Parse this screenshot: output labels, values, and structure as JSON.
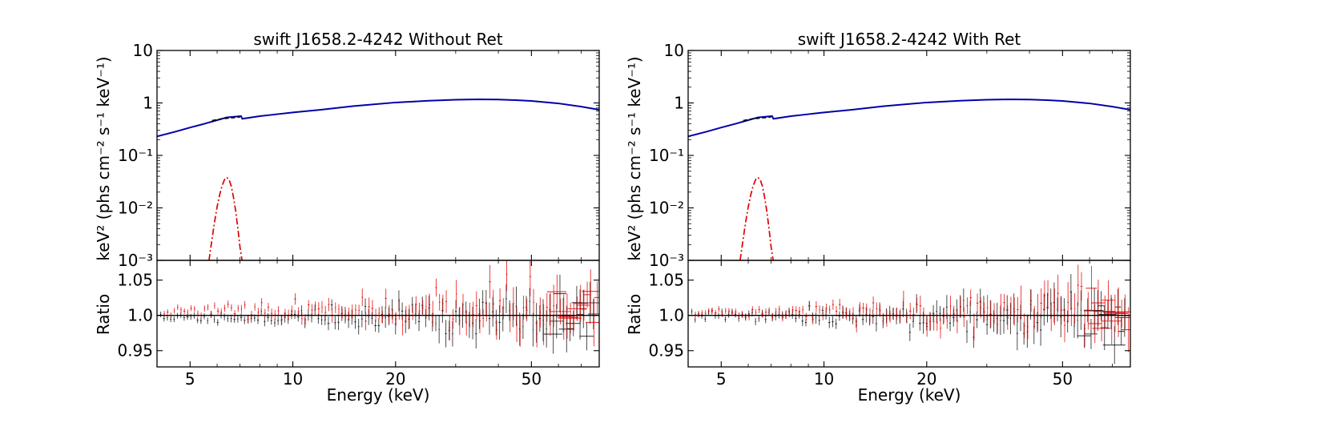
{
  "chart_data": [
    {
      "type": "line",
      "title": "swift J1658.2-4242 Without Ret",
      "xlabel": "Energy (keV)",
      "xscale": "log",
      "xlim": [
        4.0,
        79.0
      ],
      "x_ticks": [
        5,
        10,
        20,
        50
      ],
      "top_panel": {
        "ylabel": "keV² (phs cm⁻² s⁻¹ keV⁻¹)",
        "yscale": "log",
        "ylim": [
          0.001,
          10
        ],
        "y_ticks": [
          {
            "value": 10,
            "label": "10"
          },
          {
            "value": 1,
            "label": "1"
          },
          {
            "value": 0.1,
            "label": "10⁻¹"
          },
          {
            "value": 0.01,
            "label": "10⁻²"
          },
          {
            "value": 0.001,
            "label": "10⁻³"
          }
        ],
        "series": [
          {
            "style": "solid",
            "color": "#0000aa",
            "x": [
              4,
              4.5,
              5,
              5.5,
              6,
              6.4,
              7.05,
              7.11,
              8,
              9,
              10,
              12,
              15,
              20,
              25,
              30,
              35,
              40,
              45,
              50,
              60,
              70,
              79
            ],
            "y": [
              0.23,
              0.28,
              0.34,
              0.4,
              0.47,
              0.53,
              0.56,
              0.5,
              0.56,
              0.61,
              0.66,
              0.74,
              0.87,
              1.02,
              1.1,
              1.15,
              1.17,
              1.16,
              1.13,
              1.09,
              0.98,
              0.85,
              0.74
            ]
          },
          {
            "style": "dashed",
            "color": "#000000",
            "x": [
              5.8,
              6.0,
              6.2,
              6.4,
              6.6,
              6.8,
              7.0
            ],
            "y": [
              0.46,
              0.48,
              0.5,
              0.51,
              0.52,
              0.53,
              0.54
            ]
          },
          {
            "style": "dash-dot",
            "color": "#e00000",
            "x": [
              5.68,
              5.8,
              5.9,
              6.0,
              6.1,
              6.2,
              6.3,
              6.35,
              6.4,
              6.5,
              6.6,
              6.7,
              6.8,
              6.9,
              7.0,
              7.1
            ],
            "y": [
              0.001,
              0.0026,
              0.0055,
              0.0105,
              0.0175,
              0.026,
              0.034,
              0.037,
              0.038,
              0.035,
              0.026,
              0.016,
              0.0087,
              0.0041,
              0.0018,
              0.001
            ]
          }
        ]
      },
      "ratio_panel": {
        "ylabel": "Ratio",
        "ylim": [
          0.927,
          1.078
        ],
        "y_ticks": [
          {
            "value": 1.05,
            "label": "1.05"
          },
          {
            "value": 1.0,
            "label": "1.0"
          },
          {
            "value": 0.95,
            "label": "0.95"
          }
        ],
        "reference_line": 1.0,
        "series": [
          {
            "color": "#000000",
            "seed": 11,
            "x_start": 4.1,
            "x_end": 76,
            "points": 130,
            "bias": -0.003
          },
          {
            "color": "#e00000",
            "seed": 23,
            "x_start": 4.2,
            "x_end": 78,
            "points": 130,
            "bias": 0.006
          }
        ]
      }
    },
    {
      "type": "line",
      "title": "swift J1658.2-4242 With Ret",
      "xlabel": "Energy (keV)",
      "xscale": "log",
      "xlim": [
        4.0,
        79.0
      ],
      "x_ticks": [
        5,
        10,
        20,
        50
      ],
      "top_panel": {
        "ylabel": "keV² (phs cm⁻² s⁻¹ keV⁻¹)",
        "yscale": "log",
        "ylim": [
          0.001,
          10
        ],
        "y_ticks": [
          {
            "value": 10,
            "label": "10"
          },
          {
            "value": 1,
            "label": "1"
          },
          {
            "value": 0.1,
            "label": "10⁻¹"
          },
          {
            "value": 0.01,
            "label": "10⁻²"
          },
          {
            "value": 0.001,
            "label": "10⁻³"
          }
        ],
        "series": [
          {
            "style": "solid",
            "color": "#0000aa",
            "x": [
              4,
              4.5,
              5,
              5.5,
              6,
              6.4,
              7.05,
              7.11,
              8,
              9,
              10,
              12,
              15,
              20,
              25,
              30,
              35,
              40,
              45,
              50,
              60,
              70,
              79
            ],
            "y": [
              0.23,
              0.28,
              0.34,
              0.4,
              0.47,
              0.53,
              0.56,
              0.5,
              0.56,
              0.61,
              0.66,
              0.74,
              0.87,
              1.02,
              1.1,
              1.15,
              1.17,
              1.16,
              1.13,
              1.09,
              0.98,
              0.85,
              0.74
            ]
          },
          {
            "style": "dashed",
            "color": "#000000",
            "x": [
              5.8,
              6.0,
              6.2,
              6.4,
              6.6,
              6.8,
              7.0
            ],
            "y": [
              0.46,
              0.48,
              0.5,
              0.51,
              0.52,
              0.53,
              0.54
            ]
          },
          {
            "style": "dash-dot",
            "color": "#e00000",
            "x": [
              5.68,
              5.8,
              5.9,
              6.0,
              6.1,
              6.2,
              6.3,
              6.35,
              6.4,
              6.5,
              6.6,
              6.7,
              6.8,
              6.9,
              7.0,
              7.1
            ],
            "y": [
              0.001,
              0.0026,
              0.0055,
              0.0105,
              0.0175,
              0.026,
              0.034,
              0.037,
              0.038,
              0.035,
              0.026,
              0.016,
              0.0087,
              0.0041,
              0.0018,
              0.001
            ]
          }
        ]
      },
      "ratio_panel": {
        "ylabel": "Ratio",
        "ylim": [
          0.927,
          1.078
        ],
        "y_ticks": [
          {
            "value": 1.05,
            "label": "1.05"
          },
          {
            "value": 1.0,
            "label": "1.0"
          },
          {
            "value": 0.95,
            "label": "0.95"
          }
        ],
        "reference_line": 1.0,
        "series": [
          {
            "color": "#000000",
            "seed": 37,
            "x_start": 4.1,
            "x_end": 76,
            "points": 130,
            "bias": -0.001
          },
          {
            "color": "#e00000",
            "seed": 51,
            "x_start": 4.2,
            "x_end": 78,
            "points": 130,
            "bias": 0.004
          }
        ]
      }
    }
  ]
}
